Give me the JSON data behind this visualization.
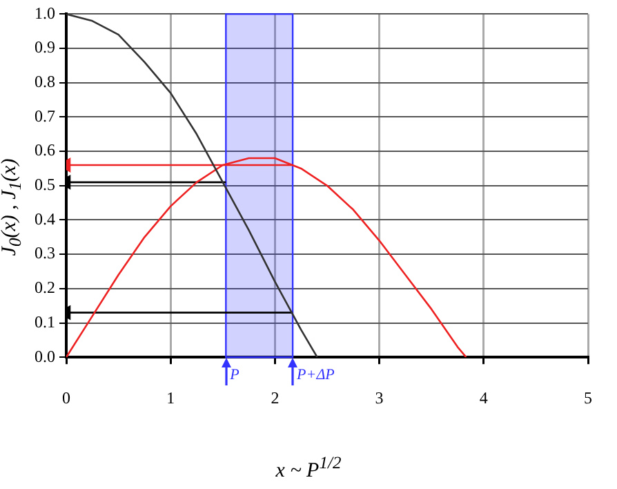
{
  "chart_data": {
    "type": "line",
    "xlabel": "x ~ P$^{1/2}$",
    "ylabel": "J$_{0}$(x) , J$_{1}$(x)",
    "series": [
      {
        "color": "#333333",
        "x": [
          0,
          0.25,
          0.5,
          0.75,
          1,
          1.25,
          1.5,
          1.75,
          2,
          2.25,
          2.405
        ],
        "values": [
          1,
          0.98,
          0.94,
          0.86,
          0.77,
          0.65,
          0.51,
          0.37,
          0.22,
          0.08,
          0
        ]
      },
      {
        "color": "#ee2222",
        "x": [
          0,
          0.25,
          0.5,
          0.75,
          1,
          1.25,
          1.5,
          1.75,
          1.84,
          2,
          2.25,
          2.5,
          2.75,
          3,
          3.25,
          3.5,
          3.75,
          3.832
        ],
        "values": [
          0,
          0.12,
          0.24,
          0.35,
          0.44,
          0.51,
          0.56,
          0.58,
          0.58,
          0.58,
          0.55,
          0.5,
          0.43,
          0.34,
          0.24,
          0.14,
          0.03,
          0
        ]
      },
      {
        "color": "#ee2222",
        "x": [
          0,
          2.17
        ],
        "values": [
          0.56,
          0.56
        ],
        "marker": "triangle"
      },
      {
        "color": "#000000",
        "x": [
          0,
          1.53
        ],
        "values": [
          0.51,
          0.51
        ],
        "marker": "triangle"
      },
      {
        "color": "#000000",
        "x": [
          0,
          2.17
        ],
        "values": [
          0.13,
          0.13
        ],
        "marker": "triangle"
      }
    ],
    "bands": [
      {
        "axis": "x",
        "from": 1.53,
        "to": 2.17,
        "color": "#3333ff"
      }
    ],
    "annotations": [
      "P",
      "P+ΔP"
    ],
    "xlim": [
      0,
      5
    ],
    "xticks": [
      0,
      1,
      2,
      3,
      4,
      5
    ],
    "ylim": [
      0,
      1
    ],
    "yticks": [
      {
        "value": 0,
        "label": "0.0"
      },
      0.1,
      0.2,
      0.3,
      0.4,
      0.5,
      0.6,
      0.7,
      0.8,
      0.9,
      {
        "value": 1,
        "label": "1.0"
      }
    ],
    "grid": true,
    "legend": false,
    "marker": "none",
    "line_style": "solid"
  }
}
